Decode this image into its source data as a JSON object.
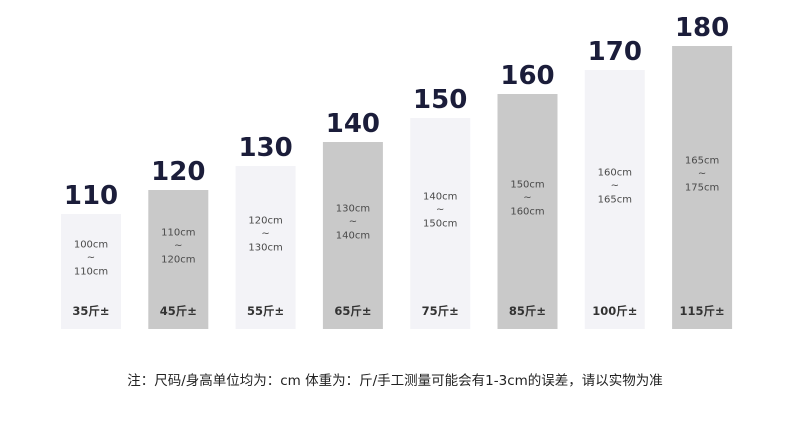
{
  "chart_data": {
    "type": "bar",
    "title": "",
    "xlabel": "",
    "ylabel": "",
    "categories": [
      "110",
      "120",
      "130",
      "140",
      "150",
      "160",
      "170",
      "180"
    ],
    "values": [
      110,
      120,
      130,
      140,
      150,
      160,
      170,
      180
    ],
    "ylim": [
      85,
      180
    ],
    "grid": false,
    "bars": [
      {
        "label": "110",
        "height_from": "100cm",
        "height_to": "110cm",
        "weight": "35斤±"
      },
      {
        "label": "120",
        "height_from": "110cm",
        "height_to": "120cm",
        "weight": "45斤±"
      },
      {
        "label": "130",
        "height_from": "120cm",
        "height_to": "130cm",
        "weight": "55斤±"
      },
      {
        "label": "140",
        "height_from": "130cm",
        "height_to": "140cm",
        "weight": "65斤±"
      },
      {
        "label": "150",
        "height_from": "140cm",
        "height_to": "150cm",
        "weight": "75斤±"
      },
      {
        "label": "160",
        "height_from": "150cm",
        "height_to": "160cm",
        "weight": "85斤±"
      },
      {
        "label": "170",
        "height_from": "160cm",
        "height_to": "165cm",
        "weight": "100斤±"
      },
      {
        "label": "180",
        "height_from": "165cm",
        "height_to": "175cm",
        "weight": "115斤±"
      }
    ],
    "tilde": "~",
    "colors": {
      "light_bar": "#f3f3f7",
      "dark_bar": "#c9c9c9",
      "label": "#1b1d3a"
    }
  },
  "note": "注：尺码/身高单位均为：cm 体重为：斤/手工测量可能会有1-3cm的误差，请以实物为准"
}
